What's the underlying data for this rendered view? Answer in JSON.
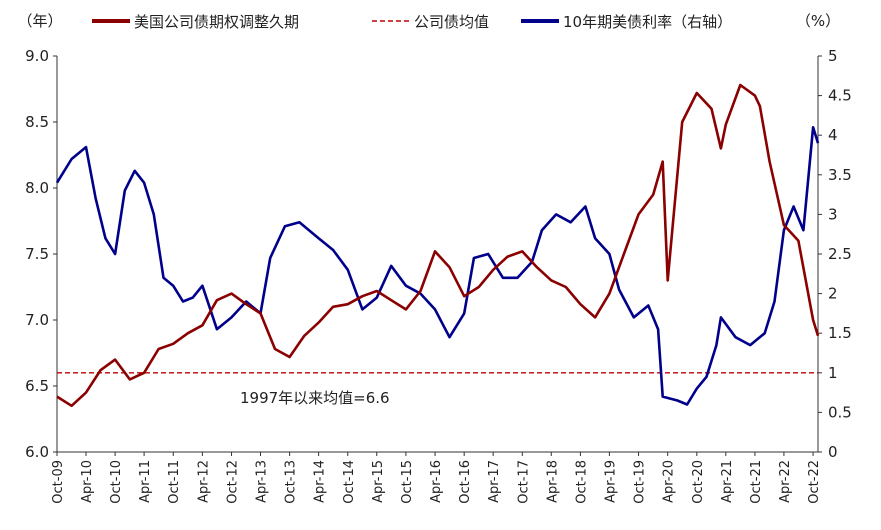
{
  "chart_data": {
    "type": "line",
    "left_unit": "（年）",
    "right_unit": "（%）",
    "y_left": {
      "min": 6.0,
      "max": 9.0,
      "ticks": [
        "6.0",
        "6.5",
        "7.0",
        "7.5",
        "8.0",
        "8.5",
        "9.0"
      ]
    },
    "y_right": {
      "min": 0,
      "max": 5,
      "ticks": [
        "0",
        "0.5",
        "1",
        "1.5",
        "2",
        "2.5",
        "3",
        "3.5",
        "4",
        "4.5",
        "5"
      ]
    },
    "x_tick_labels": [
      "Oct-09",
      "Apr-10",
      "Oct-10",
      "Apr-11",
      "Oct-11",
      "Apr-12",
      "Oct-12",
      "Apr-13",
      "Oct-13",
      "Apr-14",
      "Oct-14",
      "Apr-15",
      "Oct-15",
      "Apr-16",
      "Oct-16",
      "Apr-17",
      "Oct-17",
      "Apr-18",
      "Oct-18",
      "Apr-19",
      "Oct-19",
      "Apr-20",
      "Oct-20",
      "Apr-21",
      "Oct-21",
      "Apr-22",
      "Oct-22"
    ],
    "annotation": "1997年以来均值=6.6",
    "series": [
      {
        "name": "美国公司债期权调整久期",
        "axis": "left",
        "color": "#8b0000",
        "dates": [
          "2009-10",
          "2010-01",
          "2010-04",
          "2010-07",
          "2010-10",
          "2011-01",
          "2011-04",
          "2011-07",
          "2011-10",
          "2012-01",
          "2012-04",
          "2012-07",
          "2012-10",
          "2013-01",
          "2013-04",
          "2013-07",
          "2013-10",
          "2014-01",
          "2014-04",
          "2014-07",
          "2014-10",
          "2015-01",
          "2015-04",
          "2015-07",
          "2015-10",
          "2016-01",
          "2016-04",
          "2016-07",
          "2016-10",
          "2017-01",
          "2017-04",
          "2017-07",
          "2017-10",
          "2018-01",
          "2018-04",
          "2018-07",
          "2018-10",
          "2019-01",
          "2019-04",
          "2019-07",
          "2019-10",
          "2020-01",
          "2020-03",
          "2020-04",
          "2020-07",
          "2020-10",
          "2021-01",
          "2021-03",
          "2021-04",
          "2021-07",
          "2021-10",
          "2021-11",
          "2022-01",
          "2022-04",
          "2022-07",
          "2022-10",
          "2022-11"
        ],
        "values": [
          6.42,
          6.35,
          6.45,
          6.62,
          6.7,
          6.55,
          6.6,
          6.78,
          6.82,
          6.9,
          6.96,
          7.15,
          7.2,
          7.12,
          7.05,
          6.78,
          6.72,
          6.88,
          6.98,
          7.1,
          7.12,
          7.18,
          7.22,
          7.15,
          7.08,
          7.22,
          7.52,
          7.4,
          7.18,
          7.25,
          7.38,
          7.48,
          7.52,
          7.4,
          7.3,
          7.25,
          7.12,
          7.02,
          7.2,
          7.5,
          7.8,
          7.95,
          8.2,
          7.3,
          8.5,
          8.72,
          8.6,
          8.3,
          8.48,
          8.78,
          8.7,
          8.62,
          8.2,
          7.72,
          7.6,
          7.0,
          6.88
        ]
      },
      {
        "name": "公司债均值",
        "axis": "left",
        "color": "#c00000",
        "value": 6.6
      },
      {
        "name": "10年期美债利率（右轴）",
        "axis": "right",
        "color": "#00008b",
        "dates": [
          "2009-10",
          "2010-01",
          "2010-04",
          "2010-06",
          "2010-08",
          "2010-10",
          "2010-12",
          "2011-02",
          "2011-04",
          "2011-06",
          "2011-08",
          "2011-10",
          "2011-12",
          "2012-02",
          "2012-04",
          "2012-07",
          "2012-10",
          "2013-01",
          "2013-04",
          "2013-06",
          "2013-09",
          "2013-12",
          "2014-04",
          "2014-07",
          "2014-10",
          "2015-01",
          "2015-04",
          "2015-07",
          "2015-10",
          "2016-01",
          "2016-04",
          "2016-07",
          "2016-10",
          "2016-12",
          "2017-03",
          "2017-06",
          "2017-09",
          "2017-12",
          "2018-02",
          "2018-05",
          "2018-08",
          "2018-11",
          "2019-01",
          "2019-04",
          "2019-06",
          "2019-09",
          "2019-12",
          "2020-02",
          "2020-03",
          "2020-06",
          "2020-08",
          "2020-10",
          "2020-12",
          "2021-02",
          "2021-03",
          "2021-06",
          "2021-09",
          "2021-12",
          "2022-02",
          "2022-04",
          "2022-06",
          "2022-08",
          "2022-10",
          "2022-11"
        ],
        "values": [
          3.4,
          3.7,
          3.85,
          3.2,
          2.7,
          2.5,
          3.3,
          3.55,
          3.4,
          3.0,
          2.2,
          2.1,
          1.9,
          1.95,
          2.1,
          1.55,
          1.7,
          1.9,
          1.75,
          2.45,
          2.85,
          2.9,
          2.7,
          2.55,
          2.3,
          1.8,
          1.95,
          2.35,
          2.1,
          2.0,
          1.8,
          1.45,
          1.75,
          2.45,
          2.5,
          2.2,
          2.2,
          2.4,
          2.8,
          3.0,
          2.9,
          3.1,
          2.7,
          2.5,
          2.05,
          1.7,
          1.85,
          1.55,
          0.7,
          0.65,
          0.6,
          0.8,
          0.95,
          1.35,
          1.7,
          1.45,
          1.35,
          1.5,
          1.9,
          2.8,
          3.1,
          2.8,
          4.1,
          3.9
        ]
      }
    ]
  }
}
